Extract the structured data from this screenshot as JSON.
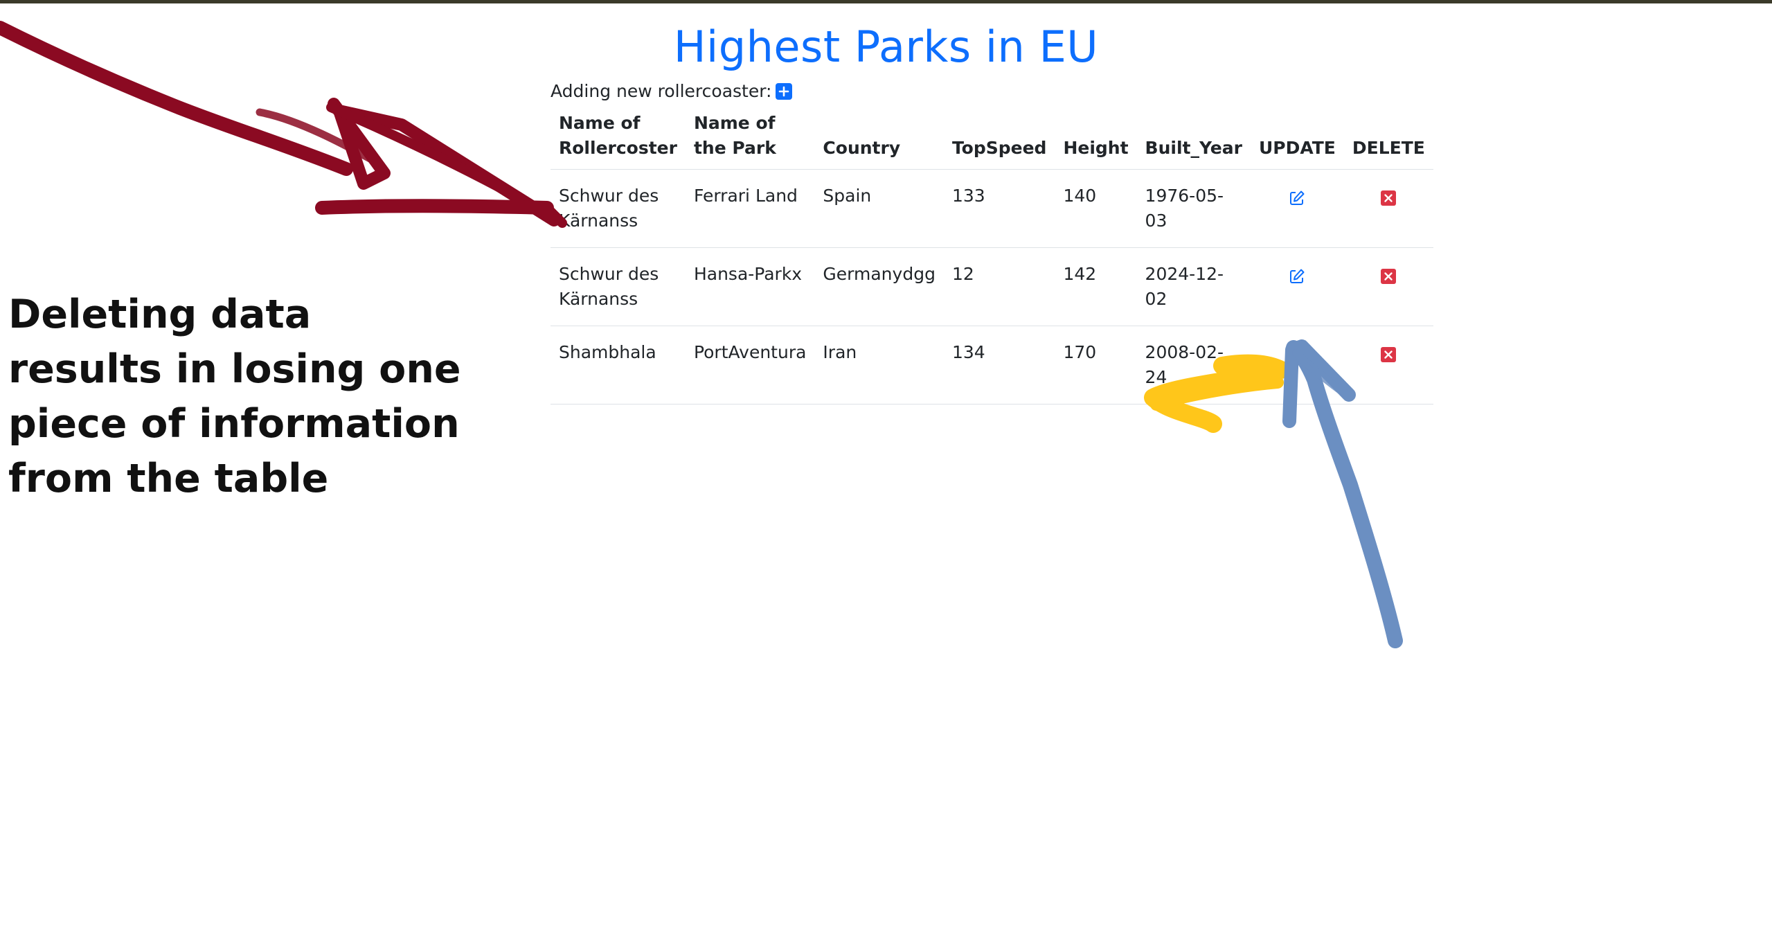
{
  "page": {
    "title": "Highest Parks in EU",
    "add_label": "Adding new rollercoaster:"
  },
  "table": {
    "headers": {
      "name": "Name of Rollercoster",
      "park": "Name of the Park",
      "country": "Country",
      "speed": "TopSpeed",
      "height": "Height",
      "year": "Built_Year",
      "update": "UPDATE",
      "delete": "DELETE"
    },
    "rows": [
      {
        "name": "Schwur des Kärnanss",
        "park": "Ferrari Land",
        "country": "Spain",
        "speed": "133",
        "height": "140",
        "year": "1976-05-03"
      },
      {
        "name": "Schwur des Kärnanss",
        "park": "Hansa-Parkx",
        "country": "Germanydgg",
        "speed": "12",
        "height": "142",
        "year": "2024-12-02"
      },
      {
        "name": "Shambhala",
        "park": "PortAventura",
        "country": "Iran",
        "speed": "134",
        "height": "170",
        "year": "2008-02-24"
      }
    ]
  },
  "annotation": {
    "text": "Deleting data results in losing one piece of information from the table"
  },
  "icons": {
    "add": "plus-square-icon",
    "update": "pencil-square-icon",
    "delete": "x-square-icon"
  },
  "colors": {
    "primary": "#0d6efd",
    "danger": "#dc3545",
    "arrow_red": "#8b0a22",
    "arrow_yellow": "#ffc61a",
    "arrow_blue": "#6b8fc2"
  }
}
